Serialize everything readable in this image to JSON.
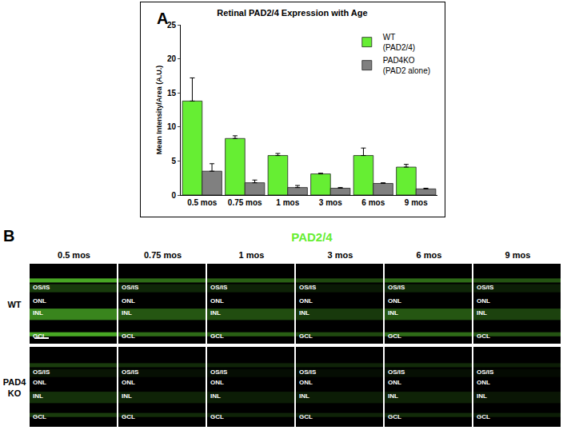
{
  "chart_data": {
    "type": "bar",
    "panel": "A",
    "title": "Retinal PAD2/4 Expression with Age",
    "y_label": "Mean Intensity/Area (A.U.)",
    "categories": [
      "0.5 mos",
      "0.75 mos",
      "1 mos",
      "3 mos",
      "6 mos",
      "9 mos"
    ],
    "series": [
      {
        "name": "WT (PAD2/4)",
        "color": "#66ee33",
        "values": [
          13.8,
          8.3,
          5.8,
          3.1,
          5.8,
          4.1
        ],
        "error": [
          3.4,
          0.4,
          0.3,
          0.1,
          1.1,
          0.4
        ]
      },
      {
        "name": "PAD4KO (PAD2 alone)",
        "color": "#808080",
        "values": [
          3.5,
          1.8,
          1.1,
          1.0,
          1.7,
          0.9
        ],
        "error": [
          1.1,
          0.4,
          0.3,
          0.1,
          0.1,
          0.1
        ]
      }
    ],
    "ylim": [
      0,
      25
    ],
    "yticks": [
      0,
      5,
      10,
      15,
      20,
      25
    ],
    "grid": false,
    "legend": "upper right"
  },
  "panel_b": {
    "label": "B",
    "title": "PAD2/4",
    "columns": [
      "0.5 mos",
      "0.75 mos",
      "1 mos",
      "3 mos",
      "6 mos",
      "9 mos"
    ],
    "rows": [
      "WT",
      "PAD4 KO"
    ],
    "layers": [
      "OS/IS",
      "ONL",
      "INL",
      "GCL"
    ]
  }
}
